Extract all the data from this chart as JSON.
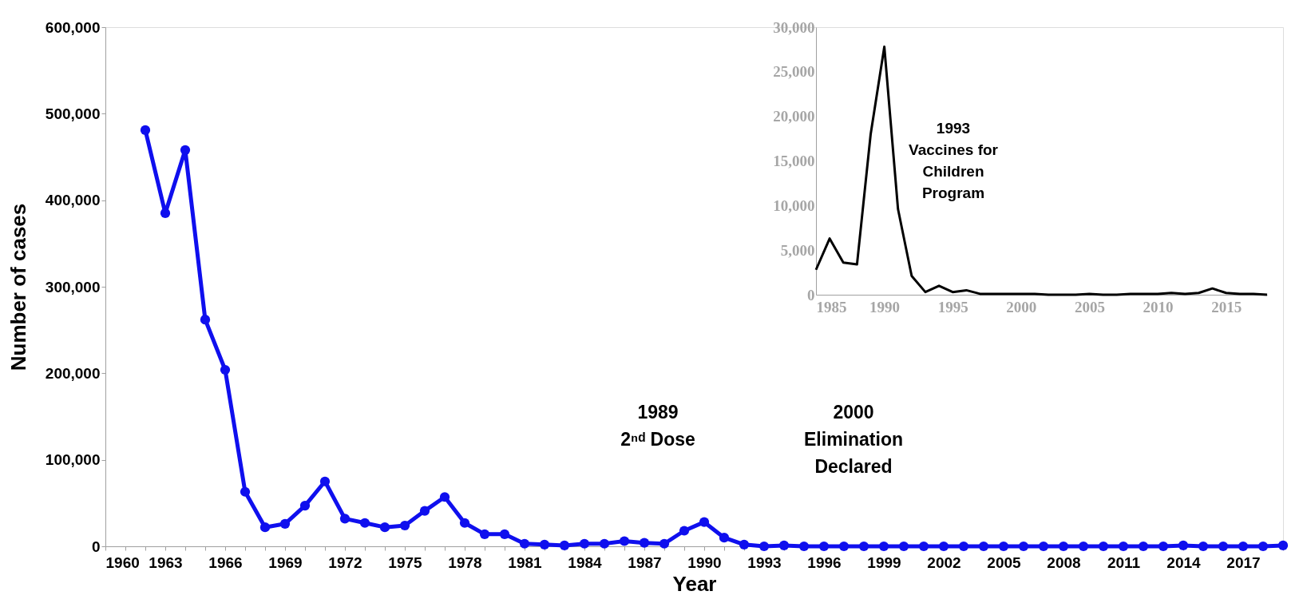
{
  "chart_data": [
    {
      "type": "line",
      "xlabel": "Year",
      "ylabel": "Number of cases",
      "x": [
        1962,
        1963,
        1964,
        1965,
        1966,
        1967,
        1968,
        1969,
        1970,
        1971,
        1972,
        1973,
        1974,
        1975,
        1976,
        1977,
        1978,
        1979,
        1980,
        1981,
        1982,
        1983,
        1984,
        1985,
        1986,
        1987,
        1988,
        1989,
        1990,
        1991,
        1992,
        1993,
        1994,
        1995,
        1996,
        1997,
        1998,
        1999,
        2000,
        2001,
        2002,
        2003,
        2004,
        2005,
        2006,
        2007,
        2008,
        2009,
        2010,
        2011,
        2012,
        2013,
        2014,
        2015,
        2016,
        2017,
        2018,
        2019
      ],
      "series": [
        {
          "color": "#0f0fee",
          "values": [
            481000,
            385000,
            458000,
            262000,
            204000,
            63000,
            22000,
            26000,
            47000,
            75000,
            32000,
            27000,
            22000,
            24000,
            41000,
            57000,
            27000,
            14000,
            14000,
            3000,
            2000,
            1000,
            3000,
            3000,
            6000,
            4000,
            3000,
            18000,
            28000,
            10000,
            2000,
            0,
            1000,
            0,
            0,
            0,
            0,
            0,
            0,
            0,
            0,
            0,
            0,
            0,
            0,
            0,
            0,
            0,
            0,
            0,
            0,
            0,
            1000,
            0,
            0,
            0,
            0,
            1000
          ]
        }
      ],
      "xlim": [
        1960,
        2019
      ],
      "xticks": [
        1960,
        {
          "value": 1961,
          "label": null
        },
        {
          "value": 1962,
          "label": null
        },
        1963,
        {
          "value": 1964,
          "label": null
        },
        {
          "value": 1965,
          "label": null
        },
        1966,
        {
          "value": 1967,
          "label": null
        },
        {
          "value": 1968,
          "label": null
        },
        1969,
        {
          "value": 1970,
          "label": null
        },
        {
          "value": 1971,
          "label": null
        },
        1972,
        {
          "value": 1973,
          "label": null
        },
        {
          "value": 1974,
          "label": null
        },
        1975,
        {
          "value": 1976,
          "label": null
        },
        {
          "value": 1977,
          "label": null
        },
        1978,
        {
          "value": 1979,
          "label": null
        },
        {
          "value": 1980,
          "label": null
        },
        1981,
        {
          "value": 1982,
          "label": null
        },
        {
          "value": 1983,
          "label": null
        },
        1984,
        {
          "value": 1985,
          "label": null
        },
        {
          "value": 1986,
          "label": null
        },
        1987,
        {
          "value": 1988,
          "label": null
        },
        {
          "value": 1989,
          "label": null
        },
        1990,
        {
          "value": 1991,
          "label": null
        },
        {
          "value": 1992,
          "label": null
        },
        1993,
        {
          "value": 1994,
          "label": null
        },
        {
          "value": 1995,
          "label": null
        },
        1996,
        {
          "value": 1997,
          "label": null
        },
        {
          "value": 1998,
          "label": null
        },
        1999,
        {
          "value": 2000,
          "label": null
        },
        {
          "value": 2001,
          "label": null
        },
        2002,
        {
          "value": 2003,
          "label": null
        },
        {
          "value": 2004,
          "label": null
        },
        2005,
        {
          "value": 2006,
          "label": null
        },
        {
          "value": 2007,
          "label": null
        },
        2008,
        {
          "value": 2009,
          "label": null
        },
        {
          "value": 2010,
          "label": null
        },
        2011,
        {
          "value": 2012,
          "label": null
        },
        {
          "value": 2013,
          "label": null
        },
        2014,
        {
          "value": 2015,
          "label": null
        },
        {
          "value": 2016,
          "label": null
        },
        2017,
        {
          "value": 2018,
          "label": null
        },
        {
          "value": 2019,
          "label": null
        }
      ],
      "ylim": [
        0,
        600000
      ],
      "yticks": [
        0,
        {
          "value": 100000,
          "label": "100,000"
        },
        {
          "value": 200000,
          "label": "200,000"
        },
        {
          "value": 300000,
          "label": "300,000"
        },
        {
          "value": 400000,
          "label": "400,000"
        },
        {
          "value": 500000,
          "label": "500,000"
        },
        {
          "value": 600000,
          "label": "600,000"
        }
      ],
      "annotations": [
        "1989\n2ⁿᵈ Dose",
        "2000\nElimination\nDeclared"
      ],
      "marker": "circle",
      "line_style": "solid",
      "grid": false
    },
    {
      "type": "line",
      "x": [
        1985,
        1986,
        1987,
        1988,
        1989,
        1990,
        1991,
        1992,
        1993,
        1994,
        1995,
        1996,
        1997,
        1998,
        1999,
        2000,
        2001,
        2002,
        2003,
        2004,
        2005,
        2006,
        2007,
        2008,
        2009,
        2010,
        2011,
        2012,
        2013,
        2014,
        2015,
        2016,
        2017,
        2018
      ],
      "series": [
        {
          "color": "#000000",
          "values": [
            2800,
            6300,
            3600,
            3400,
            18000,
            27800,
            9600,
            2100,
            300,
            1000,
            300,
            500,
            100,
            100,
            100,
            100,
            100,
            0,
            0,
            0,
            100,
            0,
            0,
            100,
            100,
            100,
            200,
            100,
            200,
            700,
            200,
            100,
            100,
            0
          ]
        }
      ],
      "xlim": [
        1985,
        2018
      ],
      "xticks": [
        1985,
        1990,
        1995,
        2000,
        2005,
        2010,
        2015
      ],
      "ylim": [
        0,
        30000
      ],
      "yticks": [
        0,
        {
          "value": 5000,
          "label": "5,000"
        },
        {
          "value": 10000,
          "label": "10,000"
        },
        {
          "value": 15000,
          "label": "15,000"
        },
        {
          "value": 20000,
          "label": "20,000"
        },
        {
          "value": 25000,
          "label": "25,000"
        },
        {
          "value": 30000,
          "label": "30,000"
        }
      ],
      "annotations": [
        "1993\nVaccines for\nChildren\nProgram"
      ],
      "marker": "none",
      "line_style": "solid",
      "grid": false
    }
  ]
}
